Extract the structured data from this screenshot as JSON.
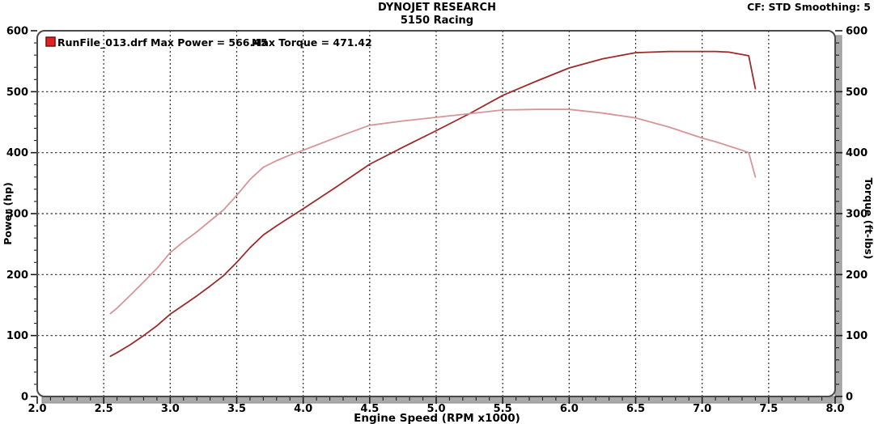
{
  "header": {
    "title": "DYNOJET RESEARCH",
    "subtitle": "5150 Racing",
    "cf_smoothing": "CF: STD  Smoothing: 5"
  },
  "legend": {
    "run_power_label": "RunFile_013.drf Max Power = 566.45",
    "torque_label": "Max Torque = 471.42"
  },
  "axes": {
    "x_label": "Engine Speed (RPM x1000)",
    "y_left_label": "Power (hp)",
    "y_right_label": "Torque (ft-lbs)",
    "x_ticks": [
      "2.0",
      "2.5",
      "3.0",
      "3.5",
      "4.0",
      "4.5",
      "5.0",
      "5.5",
      "6.0",
      "6.5",
      "7.0",
      "7.5",
      "8.0"
    ],
    "y_ticks": [
      "0",
      "100",
      "200",
      "300",
      "400",
      "500",
      "600"
    ]
  },
  "colors": {
    "power_curve": "#9e2a2a",
    "torque_curve": "#d69696",
    "legend_marker_fill": "#e02222",
    "legend_marker_border": "#7a0c0c",
    "grid": "#2e2e2e",
    "frame": "#4a4a4a",
    "shadow_bar": "#a9a9a9",
    "shadow_bar_edge": "#8a8a8a",
    "tick": "#1a1a1a"
  },
  "chart_data": {
    "type": "line",
    "title": "DYNOJET RESEARCH",
    "subtitle": "5150 Racing",
    "xlabel": "Engine Speed (RPM x1000)",
    "ylabel_left": "Power (hp)",
    "ylabel_right": "Torque (ft-lbs)",
    "xlim": [
      2.0,
      8.0
    ],
    "ylim": [
      0,
      600
    ],
    "x_major_step": 0.5,
    "x_minor_step": 0.1,
    "y_major_step": 100,
    "y_minor_step": 20,
    "grid": true,
    "legend_position": "top-left",
    "max_power": 566.45,
    "max_torque": 471.42,
    "x": [
      2.55,
      2.6,
      2.7,
      2.8,
      2.9,
      3.0,
      3.1,
      3.2,
      3.3,
      3.4,
      3.5,
      3.6,
      3.7,
      3.8,
      3.9,
      4.0,
      4.25,
      4.5,
      4.75,
      5.0,
      5.25,
      5.5,
      5.75,
      6.0,
      6.25,
      6.5,
      6.75,
      7.0,
      7.1,
      7.2,
      7.3,
      7.35,
      7.4
    ],
    "series": [
      {
        "name": "Power (hp)",
        "axis": "left",
        "color": "#9e2a2a",
        "values": [
          66,
          72,
          85,
          100,
          116,
          135,
          150,
          165,
          181,
          198,
          220,
          244,
          265,
          280,
          294,
          308,
          344,
          381,
          409,
          436,
          464,
          494,
          517,
          539,
          554,
          564,
          566,
          566,
          566,
          565,
          561,
          559,
          505
        ]
      },
      {
        "name": "Torque (ft-lbs)",
        "axis": "right",
        "color": "#d69696",
        "values": [
          136,
          145,
          166,
          188,
          210,
          236,
          254,
          270,
          288,
          306,
          330,
          356,
          376,
          387,
          396,
          404,
          425,
          445,
          452,
          458,
          464,
          470,
          471,
          471,
          465,
          457,
          442,
          424,
          418,
          411,
          404,
          400,
          360
        ]
      }
    ]
  }
}
